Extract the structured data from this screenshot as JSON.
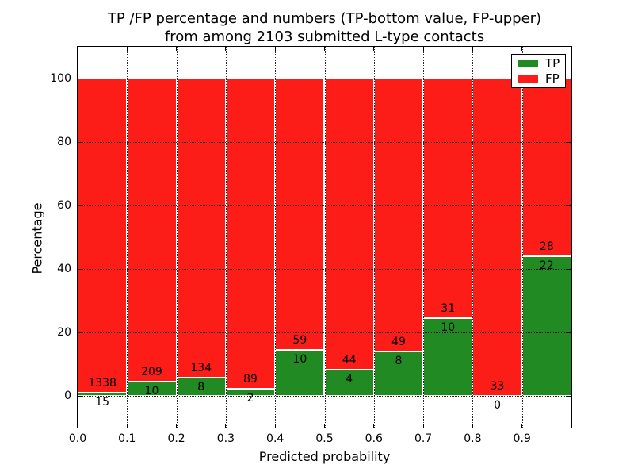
{
  "figure": {
    "title_line1": "TP /FP percentage and numbers (TP-bottom value, FP-upper)",
    "title_line2": "from among 2103 submitted L-type contacts",
    "xlabel": "Predicted probability",
    "ylabel": "Percentage"
  },
  "colors": {
    "tp_green": "#228a22",
    "fp_red": "#fd1d18",
    "grid": "#000000",
    "frame": "#000000",
    "background": "#ffffff"
  },
  "legend": {
    "position": "upper right",
    "items": [
      {
        "label": "TP",
        "color": "#228a22"
      },
      {
        "label": "FP",
        "color": "#fd1d18"
      }
    ]
  },
  "chart_data": {
    "type": "bar",
    "stacked": true,
    "normalized_to_percent": 100,
    "title": "TP /FP percentage and numbers (TP-bottom value, FP-upper) from among 2103 submitted L-type contacts",
    "xlabel": "Predicted probability",
    "ylabel": "Percentage",
    "total_contacts": 2103,
    "xlim": [
      0.0,
      1.0
    ],
    "ylim": [
      -10,
      110
    ],
    "bin_width": 0.1,
    "bin_starts": [
      0.0,
      0.1,
      0.2,
      0.3,
      0.4,
      0.5,
      0.6,
      0.7,
      0.8,
      0.9
    ],
    "x_tick_labels": [
      "0.0",
      "0.1",
      "0.2",
      "0.3",
      "0.4",
      "0.5",
      "0.6",
      "0.7",
      "0.8",
      "0.9"
    ],
    "y_tick_values": [
      0,
      20,
      40,
      60,
      80,
      100
    ],
    "y_tick_labels": [
      "0",
      "20",
      "40",
      "60",
      "80",
      "100"
    ],
    "grid_style": "dotted",
    "legend_position": "upper right",
    "series": [
      {
        "name": "TP",
        "color": "#228a22",
        "counts": [
          15,
          10,
          8,
          2,
          10,
          4,
          8,
          10,
          0,
          22
        ]
      },
      {
        "name": "FP",
        "color": "#fd1d18",
        "counts": [
          1338,
          209,
          134,
          89,
          59,
          44,
          49,
          31,
          33,
          28
        ]
      }
    ],
    "tp_percent": [
      1.109,
      4.566,
      5.634,
      2.198,
      14.493,
      8.333,
      14.035,
      24.39,
      0.0,
      44.0
    ]
  }
}
